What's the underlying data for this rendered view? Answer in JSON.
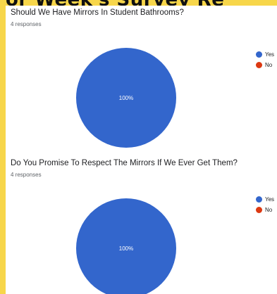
{
  "banner": {
    "text": "or Week's Survey Re"
  },
  "colors": {
    "yes": "#3366cc",
    "no": "#dc3912",
    "slice_label": "#ffffff"
  },
  "charts": [
    {
      "title": "Should We Have Mirrors In Student Bathrooms?",
      "responses": "4 responses",
      "legend": [
        "Yes",
        "No"
      ],
      "slice_label": "100%"
    },
    {
      "title": "Do You Promise To Respect The Mirrors If We Ever Get Them?",
      "responses": "4 responses",
      "legend": [
        "Yes",
        "No"
      ],
      "slice_label": "100%"
    }
  ],
  "chart_data": [
    {
      "type": "pie",
      "title": "Should We Have Mirrors In Student Bathrooms?",
      "categories": [
        "Yes",
        "No"
      ],
      "values": [
        4,
        0
      ],
      "percent_labels": [
        "100%"
      ],
      "legend_position": "right"
    },
    {
      "type": "pie",
      "title": "Do You Promise To Respect The Mirrors If We Ever Get Them?",
      "categories": [
        "Yes",
        "No"
      ],
      "values": [
        4,
        0
      ],
      "percent_labels": [
        "100%"
      ],
      "legend_position": "right"
    }
  ]
}
